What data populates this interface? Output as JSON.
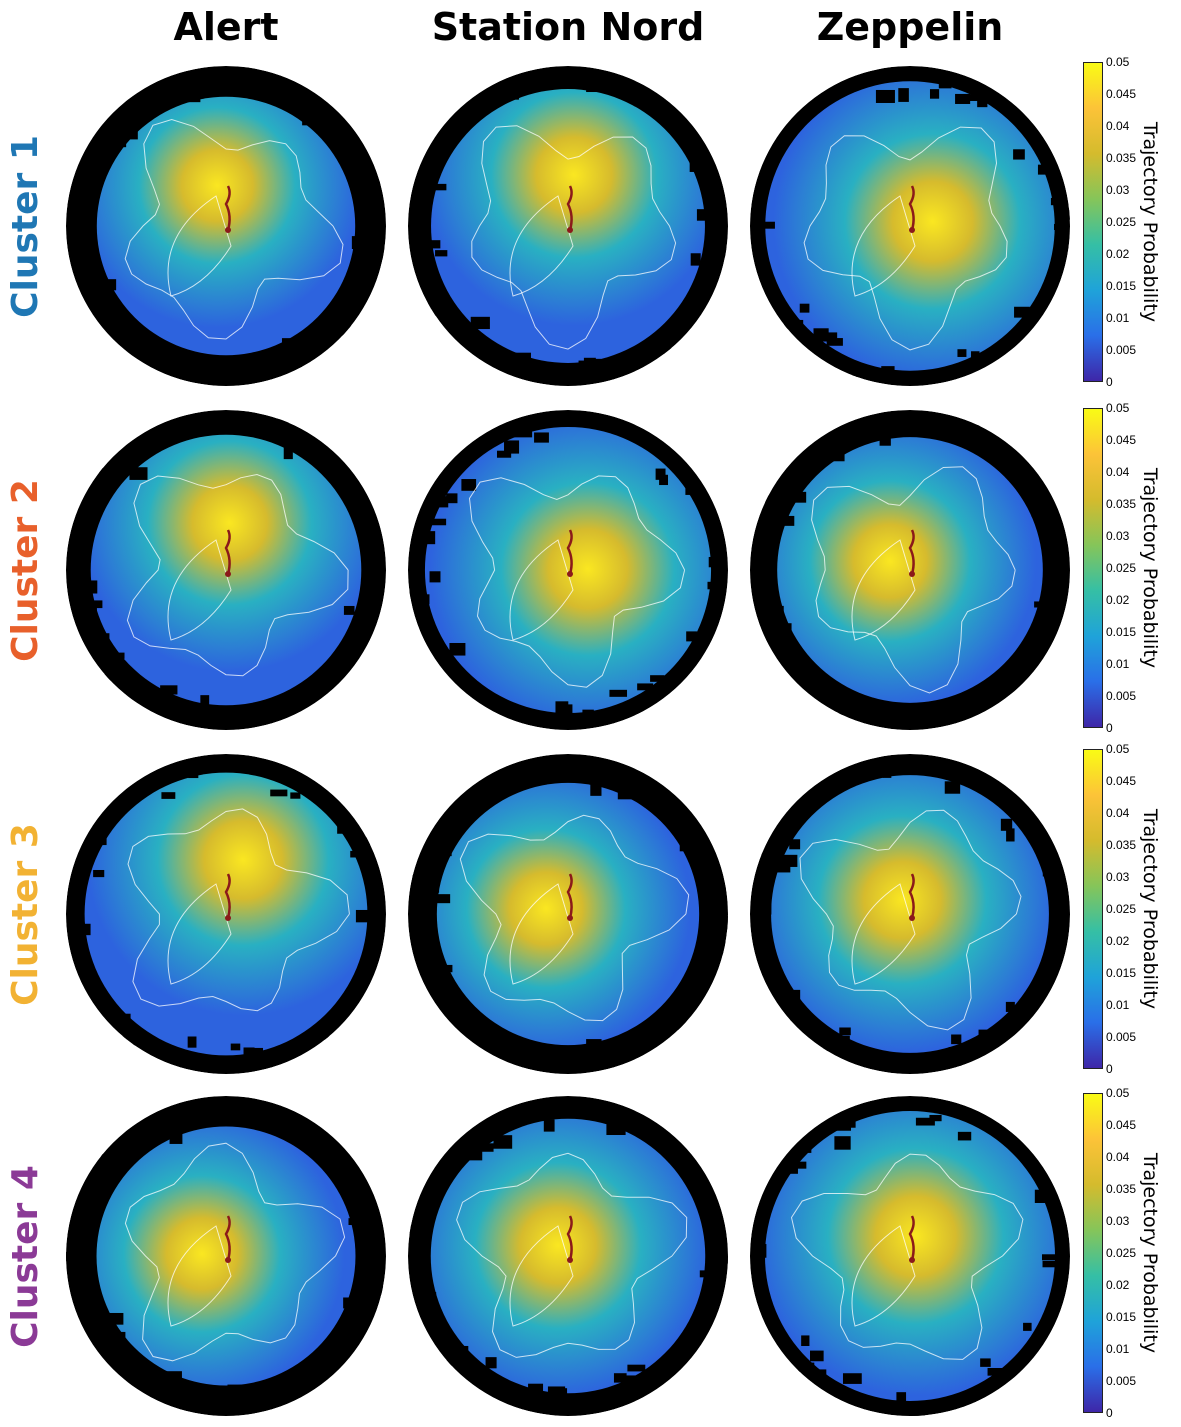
{
  "columns": [
    "Alert",
    "Station Nord",
    "Zeppelin"
  ],
  "rows": [
    {
      "label": "Cluster 1",
      "color": "#1f77b4"
    },
    {
      "label": "Cluster 2",
      "color": "#e8602b"
    },
    {
      "label": "Cluster 3",
      "color": "#f2b233"
    },
    {
      "label": "Cluster 4",
      "color": "#8b3a96"
    }
  ],
  "colorbar": {
    "label": "Trajectory Probability",
    "min": 0,
    "max": 0.05,
    "ticks": [
      "0.05",
      "0.045",
      "0.04",
      "0.035",
      "0.03",
      "0.025",
      "0.02",
      "0.015",
      "0.01",
      "0.005",
      "0"
    ],
    "colormap": [
      "#3e26a8",
      "#2a6fe8",
      "#1fa3d9",
      "#35bfa5",
      "#85c55a",
      "#d4bb2d",
      "#fcc338",
      "#f9fb15"
    ]
  },
  "map_colors": {
    "background": "#000000",
    "coastline": "#ffffff",
    "trajectory": "#8b1a1a"
  }
}
